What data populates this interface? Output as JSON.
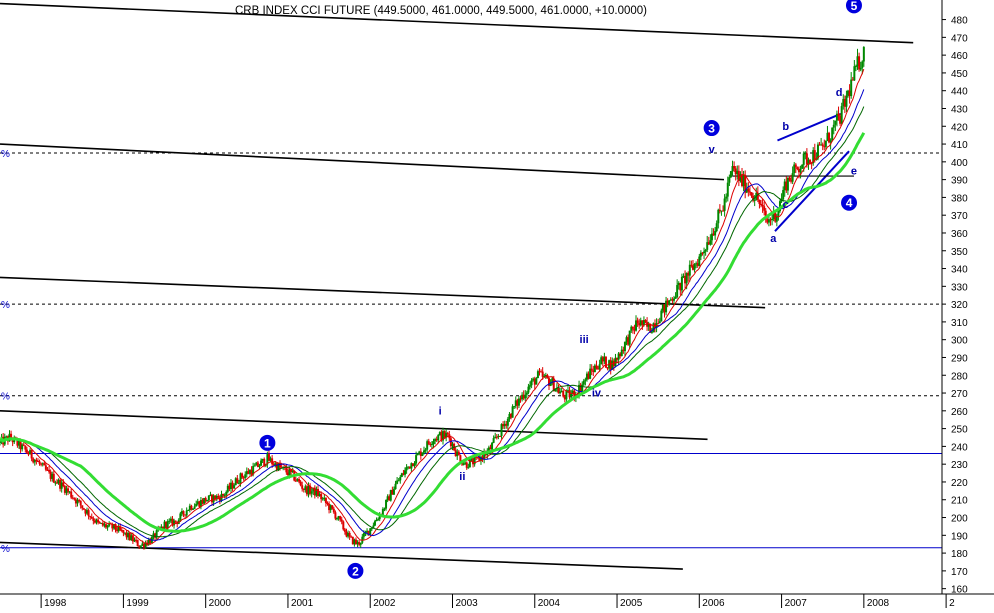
{
  "chart_data": {
    "type": "candlestick",
    "title": "CRB INDEX CCI FUTURE (449.5000, 461.0000, 449.5000, 461.0000, +10.0000)",
    "x_ticks": [
      "1998",
      "1999",
      "2000",
      "2001",
      "2002",
      "2003",
      "2004",
      "2005",
      "2006",
      "2007",
      "2008",
      "2"
    ],
    "x_range": [
      1997.5,
      2008.95
    ],
    "y_ticks": [
      160,
      170,
      180,
      190,
      200,
      210,
      220,
      230,
      240,
      250,
      260,
      270,
      280,
      290,
      300,
      310,
      320,
      330,
      340,
      350,
      360,
      370,
      380,
      390,
      400,
      410,
      420,
      430,
      440,
      450,
      460,
      470,
      480
    ],
    "ylim": [
      157,
      491
    ],
    "grid": false,
    "price_series": [
      [
        1997.5,
        242
      ],
      [
        1997.62,
        245
      ],
      [
        1997.75,
        240
      ],
      [
        1997.9,
        234
      ],
      [
        1998.1,
        224
      ],
      [
        1998.3,
        216
      ],
      [
        1998.5,
        206
      ],
      [
        1998.7,
        196
      ],
      [
        1998.9,
        194
      ],
      [
        1999.1,
        188
      ],
      [
        1999.2,
        184
      ],
      [
        1999.35,
        188
      ],
      [
        1999.5,
        196
      ],
      [
        1999.65,
        198
      ],
      [
        1999.8,
        206
      ],
      [
        2000.0,
        210
      ],
      [
        2000.2,
        212
      ],
      [
        2000.4,
        222
      ],
      [
        2000.6,
        228
      ],
      [
        2000.75,
        233
      ],
      [
        2000.9,
        228
      ],
      [
        2001.05,
        224
      ],
      [
        2001.2,
        216
      ],
      [
        2001.35,
        214
      ],
      [
        2001.5,
        206
      ],
      [
        2001.6,
        200
      ],
      [
        2001.75,
        188
      ],
      [
        2001.85,
        185
      ],
      [
        2002.0,
        194
      ],
      [
        2002.15,
        204
      ],
      [
        2002.3,
        218
      ],
      [
        2002.45,
        228
      ],
      [
        2002.6,
        236
      ],
      [
        2002.75,
        244
      ],
      [
        2002.85,
        246
      ],
      [
        2002.95,
        246
      ],
      [
        2003.05,
        236
      ],
      [
        2003.15,
        230
      ],
      [
        2003.3,
        232
      ],
      [
        2003.45,
        238
      ],
      [
        2003.6,
        250
      ],
      [
        2003.75,
        262
      ],
      [
        2003.9,
        272
      ],
      [
        2004.05,
        280
      ],
      [
        2004.2,
        276
      ],
      [
        2004.35,
        268
      ],
      [
        2004.5,
        270
      ],
      [
        2004.65,
        280
      ],
      [
        2004.8,
        288
      ],
      [
        2004.95,
        286
      ],
      [
        2005.1,
        298
      ],
      [
        2005.25,
        310
      ],
      [
        2005.4,
        306
      ],
      [
        2005.55,
        316
      ],
      [
        2005.7,
        326
      ],
      [
        2005.85,
        336
      ],
      [
        2006.0,
        346
      ],
      [
        2006.15,
        360
      ],
      [
        2006.3,
        376
      ],
      [
        2006.4,
        396
      ],
      [
        2006.5,
        390
      ],
      [
        2006.62,
        384
      ],
      [
        2006.72,
        378
      ],
      [
        2006.82,
        366
      ],
      [
        2006.95,
        372
      ],
      [
        2007.05,
        388
      ],
      [
        2007.15,
        394
      ],
      [
        2007.25,
        400
      ],
      [
        2007.38,
        404
      ],
      [
        2007.5,
        408
      ],
      [
        2007.6,
        416
      ],
      [
        2007.72,
        426
      ],
      [
        2007.82,
        440
      ],
      [
        2007.92,
        454
      ],
      [
        2008.0,
        461
      ]
    ],
    "annotations": [
      {
        "text": "1",
        "x": 2000.75,
        "y": 242,
        "style": "circle"
      },
      {
        "text": "2",
        "x": 2001.82,
        "y": 170,
        "style": "circle"
      },
      {
        "text": "3",
        "x": 2006.15,
        "y": 419,
        "style": "circle"
      },
      {
        "text": "4",
        "x": 2007.82,
        "y": 377,
        "style": "circle"
      },
      {
        "text": "5",
        "x": 2007.88,
        "y": 488,
        "style": "circle"
      },
      {
        "text": "i",
        "x": 2002.85,
        "y": 258,
        "style": "plain"
      },
      {
        "text": "ii",
        "x": 2003.12,
        "y": 221,
        "style": "plain"
      },
      {
        "text": "iii",
        "x": 2004.6,
        "y": 298,
        "style": "plain"
      },
      {
        "text": "iv",
        "x": 2004.75,
        "y": 268,
        "style": "plain"
      },
      {
        "text": "v",
        "x": 2006.15,
        "y": 405,
        "style": "plain"
      },
      {
        "text": "a",
        "x": 2006.9,
        "y": 355,
        "style": "plain"
      },
      {
        "text": "b",
        "x": 2007.05,
        "y": 418,
        "style": "plain"
      },
      {
        "text": "c",
        "x": 2007.05,
        "y": 374,
        "style": "plain"
      },
      {
        "text": "d",
        "x": 2007.7,
        "y": 437,
        "style": "plain"
      },
      {
        "text": "e",
        "x": 2007.88,
        "y": 393,
        "style": "plain"
      }
    ]
  }
}
